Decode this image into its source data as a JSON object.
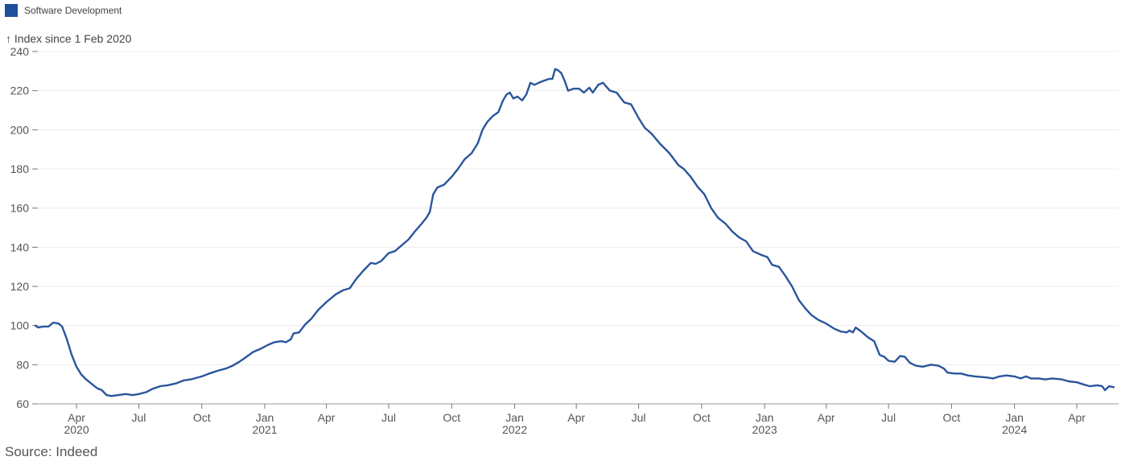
{
  "legend": {
    "label": "Software Development",
    "color": "#1f4e9c"
  },
  "source": "Source: Indeed",
  "chart_data": {
    "type": "line",
    "ylabel": "↑ Index since 1 Feb 2020",
    "ylim": [
      60,
      240
    ],
    "yticks": [
      60,
      80,
      100,
      120,
      140,
      160,
      180,
      200,
      220,
      240
    ],
    "xlim": [
      "2020-02-01",
      "2024-06-01"
    ],
    "xticks": [
      {
        "date": "2020-04-01",
        "label": "Apr",
        "year": "2020"
      },
      {
        "date": "2020-07-01",
        "label": "Jul",
        "year": ""
      },
      {
        "date": "2020-10-01",
        "label": "Oct",
        "year": ""
      },
      {
        "date": "2021-01-01",
        "label": "Jan",
        "year": "2021"
      },
      {
        "date": "2021-04-01",
        "label": "Apr",
        "year": ""
      },
      {
        "date": "2021-07-01",
        "label": "Jul",
        "year": ""
      },
      {
        "date": "2021-10-01",
        "label": "Oct",
        "year": ""
      },
      {
        "date": "2022-01-01",
        "label": "Jan",
        "year": "2022"
      },
      {
        "date": "2022-04-01",
        "label": "Apr",
        "year": ""
      },
      {
        "date": "2022-07-01",
        "label": "Jul",
        "year": ""
      },
      {
        "date": "2022-10-01",
        "label": "Oct",
        "year": ""
      },
      {
        "date": "2023-01-01",
        "label": "Jan",
        "year": "2023"
      },
      {
        "date": "2023-04-01",
        "label": "Apr",
        "year": ""
      },
      {
        "date": "2023-07-01",
        "label": "Jul",
        "year": ""
      },
      {
        "date": "2023-10-01",
        "label": "Oct",
        "year": ""
      },
      {
        "date": "2024-01-01",
        "label": "Jan",
        "year": "2024"
      },
      {
        "date": "2024-04-01",
        "label": "Apr",
        "year": ""
      }
    ],
    "series": [
      {
        "name": "Software Development",
        "color": "#2a559c",
        "points": [
          [
            "2020-02-01",
            100
          ],
          [
            "2020-02-05",
            99
          ],
          [
            "2020-02-12",
            99.5
          ],
          [
            "2020-02-20",
            99.5
          ],
          [
            "2020-02-27",
            101.5
          ],
          [
            "2020-03-06",
            101
          ],
          [
            "2020-03-11",
            99.5
          ],
          [
            "2020-03-18",
            93
          ],
          [
            "2020-03-25",
            85
          ],
          [
            "2020-04-01",
            79
          ],
          [
            "2020-04-08",
            75
          ],
          [
            "2020-04-15",
            72.5
          ],
          [
            "2020-04-24",
            70
          ],
          [
            "2020-05-01",
            68
          ],
          [
            "2020-05-08",
            67
          ],
          [
            "2020-05-15",
            64.5
          ],
          [
            "2020-05-22",
            64
          ],
          [
            "2020-06-01",
            64.5
          ],
          [
            "2020-06-12",
            65
          ],
          [
            "2020-06-22",
            64.5
          ],
          [
            "2020-07-01",
            65
          ],
          [
            "2020-07-12",
            66
          ],
          [
            "2020-07-20",
            67.5
          ],
          [
            "2020-08-01",
            69
          ],
          [
            "2020-08-12",
            69.5
          ],
          [
            "2020-08-25",
            70.5
          ],
          [
            "2020-09-05",
            72
          ],
          [
            "2020-09-15",
            72.5
          ],
          [
            "2020-10-01",
            74
          ],
          [
            "2020-10-12",
            75.5
          ],
          [
            "2020-10-25",
            77
          ],
          [
            "2020-11-05",
            78
          ],
          [
            "2020-11-15",
            79.5
          ],
          [
            "2020-11-25",
            81.5
          ],
          [
            "2020-12-05",
            84
          ],
          [
            "2020-12-15",
            86.5
          ],
          [
            "2020-12-25",
            88
          ],
          [
            "2021-01-05",
            90
          ],
          [
            "2021-01-15",
            91.5
          ],
          [
            "2021-01-25",
            92
          ],
          [
            "2021-02-01",
            91.5
          ],
          [
            "2021-02-08",
            93
          ],
          [
            "2021-02-12",
            96
          ],
          [
            "2021-02-20",
            96.5
          ],
          [
            "2021-03-01",
            100.5
          ],
          [
            "2021-03-10",
            103.5
          ],
          [
            "2021-03-20",
            108
          ],
          [
            "2021-04-01",
            112
          ],
          [
            "2021-04-15",
            116
          ],
          [
            "2021-04-25",
            118
          ],
          [
            "2021-05-05",
            119
          ],
          [
            "2021-05-15",
            124
          ],
          [
            "2021-05-25",
            128
          ],
          [
            "2021-06-05",
            132
          ],
          [
            "2021-06-12",
            131.5
          ],
          [
            "2021-06-20",
            133
          ],
          [
            "2021-07-01",
            137
          ],
          [
            "2021-07-10",
            138
          ],
          [
            "2021-07-20",
            141
          ],
          [
            "2021-07-30",
            144
          ],
          [
            "2021-08-08",
            148
          ],
          [
            "2021-08-18",
            152
          ],
          [
            "2021-08-25",
            155
          ],
          [
            "2021-08-30",
            158
          ],
          [
            "2021-09-04",
            167
          ],
          [
            "2021-09-10",
            170.5
          ],
          [
            "2021-09-20",
            172
          ],
          [
            "2021-10-01",
            176
          ],
          [
            "2021-10-10",
            180
          ],
          [
            "2021-10-20",
            185
          ],
          [
            "2021-10-30",
            188
          ],
          [
            "2021-11-08",
            193
          ],
          [
            "2021-11-15",
            200
          ],
          [
            "2021-11-22",
            204
          ],
          [
            "2021-11-30",
            207
          ],
          [
            "2021-12-08",
            209
          ],
          [
            "2021-12-15",
            215
          ],
          [
            "2021-12-20",
            218
          ],
          [
            "2021-12-25",
            219
          ],
          [
            "2021-12-30",
            216
          ],
          [
            "2022-01-05",
            217
          ],
          [
            "2022-01-12",
            215
          ],
          [
            "2022-01-18",
            218
          ],
          [
            "2022-01-24",
            224
          ],
          [
            "2022-01-30",
            223
          ],
          [
            "2022-02-05",
            224
          ],
          [
            "2022-02-12",
            225
          ],
          [
            "2022-02-20",
            226
          ],
          [
            "2022-02-25",
            226
          ],
          [
            "2022-03-01",
            231
          ],
          [
            "2022-03-05",
            230.5
          ],
          [
            "2022-03-10",
            229
          ],
          [
            "2022-03-15",
            225
          ],
          [
            "2022-03-20",
            220
          ],
          [
            "2022-03-28",
            221
          ],
          [
            "2022-04-05",
            221
          ],
          [
            "2022-04-12",
            219
          ],
          [
            "2022-04-20",
            221.5
          ],
          [
            "2022-04-25",
            219
          ],
          [
            "2022-05-03",
            223
          ],
          [
            "2022-05-10",
            224
          ],
          [
            "2022-05-20",
            220
          ],
          [
            "2022-05-30",
            219
          ],
          [
            "2022-06-10",
            214
          ],
          [
            "2022-06-20",
            213
          ],
          [
            "2022-07-01",
            206
          ],
          [
            "2022-07-10",
            201
          ],
          [
            "2022-07-20",
            198
          ],
          [
            "2022-08-01",
            193
          ],
          [
            "2022-08-15",
            188
          ],
          [
            "2022-08-28",
            182
          ],
          [
            "2022-09-05",
            180
          ],
          [
            "2022-09-15",
            176
          ],
          [
            "2022-09-25",
            171
          ],
          [
            "2022-10-05",
            167
          ],
          [
            "2022-10-15",
            160
          ],
          [
            "2022-10-25",
            155
          ],
          [
            "2022-11-05",
            152
          ],
          [
            "2022-11-15",
            148
          ],
          [
            "2022-11-25",
            145
          ],
          [
            "2022-12-05",
            143
          ],
          [
            "2022-12-15",
            138
          ],
          [
            "2022-12-28",
            136
          ],
          [
            "2023-01-05",
            135
          ],
          [
            "2023-01-12",
            131
          ],
          [
            "2023-01-22",
            130
          ],
          [
            "2023-02-01",
            125
          ],
          [
            "2023-02-10",
            120
          ],
          [
            "2023-02-20",
            113
          ],
          [
            "2023-03-01",
            109
          ],
          [
            "2023-03-10",
            105.5
          ],
          [
            "2023-03-20",
            103
          ],
          [
            "2023-04-01",
            101
          ],
          [
            "2023-04-12",
            98.5
          ],
          [
            "2023-04-22",
            97
          ],
          [
            "2023-05-01",
            96.5
          ],
          [
            "2023-05-05",
            97.5
          ],
          [
            "2023-05-10",
            96.5
          ],
          [
            "2023-05-14",
            99
          ],
          [
            "2023-05-22",
            97
          ],
          [
            "2023-06-01",
            94
          ],
          [
            "2023-06-10",
            92
          ],
          [
            "2023-06-18",
            85
          ],
          [
            "2023-06-25",
            84
          ],
          [
            "2023-07-01",
            82
          ],
          [
            "2023-07-10",
            81.5
          ],
          [
            "2023-07-18",
            84.5
          ],
          [
            "2023-07-25",
            84
          ],
          [
            "2023-08-01",
            81
          ],
          [
            "2023-08-10",
            79.5
          ],
          [
            "2023-08-20",
            79
          ],
          [
            "2023-09-01",
            80
          ],
          [
            "2023-09-12",
            79.5
          ],
          [
            "2023-09-20",
            78
          ],
          [
            "2023-09-25",
            76
          ],
          [
            "2023-10-05",
            75.5
          ],
          [
            "2023-10-15",
            75.5
          ],
          [
            "2023-10-25",
            74.5
          ],
          [
            "2023-11-05",
            74
          ],
          [
            "2023-11-20",
            73.5
          ],
          [
            "2023-12-01",
            73
          ],
          [
            "2023-12-10",
            74
          ],
          [
            "2023-12-20",
            74.5
          ],
          [
            "2024-01-01",
            74
          ],
          [
            "2024-01-10",
            73
          ],
          [
            "2024-01-18",
            74
          ],
          [
            "2024-01-25",
            73
          ],
          [
            "2024-02-05",
            73
          ],
          [
            "2024-02-15",
            72.5
          ],
          [
            "2024-02-25",
            73
          ],
          [
            "2024-03-10",
            72.5
          ],
          [
            "2024-03-20",
            71.5
          ],
          [
            "2024-04-01",
            71
          ],
          [
            "2024-04-10",
            70
          ],
          [
            "2024-04-20",
            69
          ],
          [
            "2024-05-01",
            69.5
          ],
          [
            "2024-05-08",
            69
          ],
          [
            "2024-05-12",
            67
          ],
          [
            "2024-05-18",
            69
          ],
          [
            "2024-05-25",
            68.5
          ]
        ]
      }
    ]
  }
}
